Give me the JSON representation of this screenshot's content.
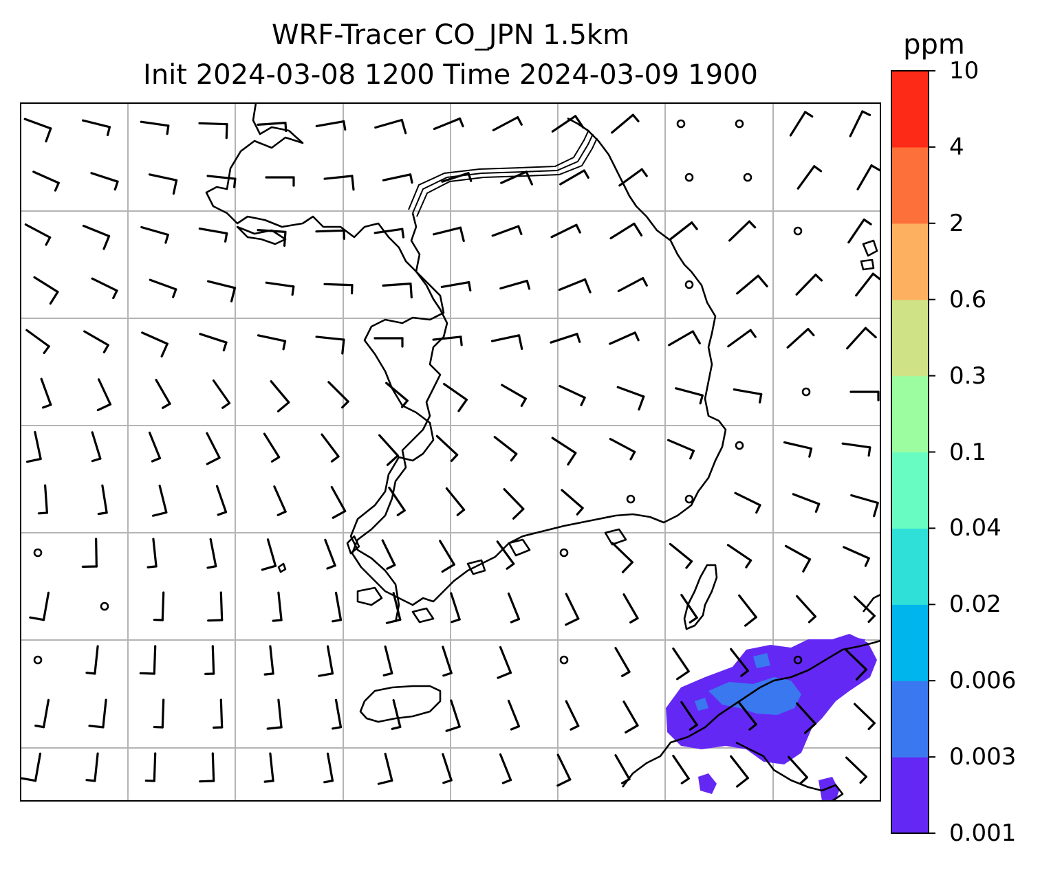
{
  "title_line1": "WRF-Tracer CO_JPN 1.5km",
  "title_line2": "Init 2024-03-08 1200 Time 2024-03-09 1900",
  "colorbar": {
    "unit": "ppm",
    "levels": [
      "0.001",
      "0.003",
      "0.006",
      "0.02",
      "0.04",
      "0.1",
      "0.3",
      "0.6",
      "2",
      "4",
      "10"
    ],
    "colors": [
      "#6428f4",
      "#3a78f0",
      "#00b4ec",
      "#2ee0d8",
      "#68fcc2",
      "#9cfca0",
      "#d0e286",
      "#feb061",
      "#fe7039",
      "#fe2a18"
    ]
  },
  "map": {
    "region": "Korean Peninsula and western Japan",
    "gridlines": true,
    "grid_color": "#b4b4b4",
    "coastline_color": "#000000",
    "wind_barbs": true,
    "plume_location": "bottom-right"
  }
}
